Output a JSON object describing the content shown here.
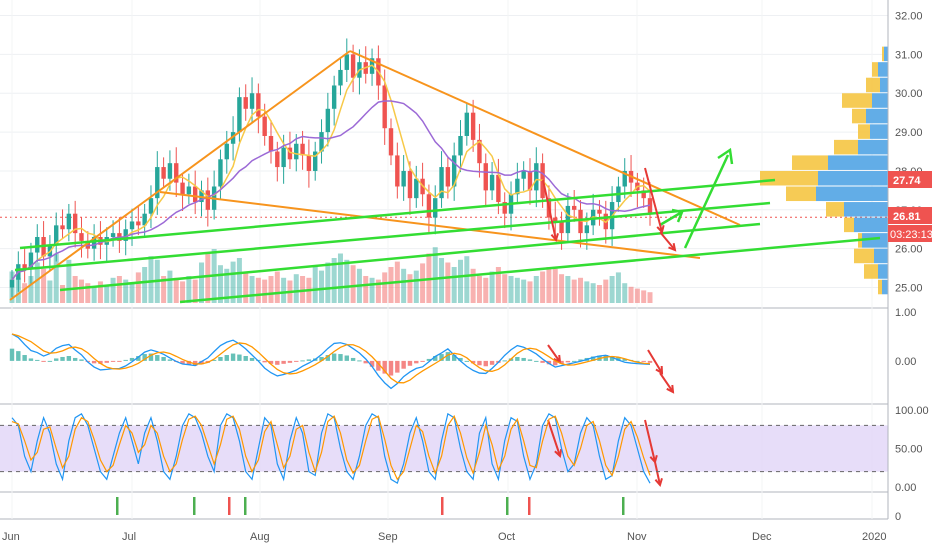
{
  "chart_data": [
    {
      "type": "candlestick",
      "panel": "price",
      "y_ticks": [
        "32.00",
        "31.00",
        "30.00",
        "29.00",
        "28.00",
        "27.00",
        "26.00",
        "25.00"
      ],
      "ylim": [
        24.55,
        32.4
      ],
      "last_price_label": "27.74",
      "current_price_label": "26.81",
      "countdown_label": "03:23:13",
      "colors": {
        "up": "#26a69a",
        "down": "#ef5350",
        "ma_fast": "#f7c948",
        "ma_slow": "#9c6ad6",
        "trend_orange": "#f7941d",
        "trend_green": "#33dd33",
        "arrow_red": "#e53935"
      },
      "closes": [
        25.2,
        25.6,
        25.5,
        25.9,
        26.3,
        25.8,
        26.1,
        26.6,
        26.5,
        26.9,
        26.4,
        26.2,
        26.0,
        26.3,
        26.1,
        26.3,
        26.4,
        26.2,
        26.5,
        26.7,
        26.6,
        26.9,
        27.3,
        28.1,
        27.8,
        28.2,
        27.7,
        27.4,
        27.6,
        27.2,
        27.5,
        27.0,
        27.6,
        28.3,
        28.7,
        29.0,
        29.9,
        29.6,
        30.0,
        29.4,
        28.9,
        28.5,
        28.1,
        28.6,
        28.3,
        28.7,
        28.4,
        28.0,
        28.5,
        29.0,
        29.6,
        30.2,
        30.6,
        31.0,
        30.4,
        30.8,
        30.5,
        30.9,
        30.2,
        29.1,
        28.4,
        27.6,
        28.0,
        27.3,
        27.8,
        27.4,
        26.8,
        27.3,
        28.1,
        27.6,
        28.4,
        28.9,
        29.5,
        28.8,
        28.2,
        27.5,
        27.9,
        27.2,
        26.9,
        27.4,
        27.8,
        28.0,
        27.5,
        28.2,
        27.3,
        26.8,
        26.7,
        26.4,
        27.1,
        27.0,
        26.4,
        26.6,
        27.0,
        26.9,
        26.5,
        27.2,
        27.6,
        28.0,
        27.7,
        27.5,
        27.3,
        26.9
      ],
      "volumes": [
        35,
        28,
        22,
        30,
        45,
        38,
        25,
        55,
        20,
        48,
        30,
        26,
        22,
        18,
        24,
        20,
        28,
        30,
        26,
        22,
        34,
        40,
        52,
        48,
        30,
        36,
        28,
        24,
        30,
        26,
        45,
        55,
        60,
        42,
        38,
        46,
        50,
        35,
        30,
        28,
        26,
        30,
        35,
        28,
        25,
        32,
        30,
        28,
        40,
        36,
        45,
        50,
        55,
        48,
        42,
        38,
        30,
        28,
        26,
        34,
        40,
        46,
        38,
        32,
        36,
        44,
        55,
        62,
        50,
        45,
        40,
        48,
        52,
        38,
        30,
        28,
        35,
        40,
        32,
        30,
        28,
        26,
        24,
        30,
        35,
        40,
        38,
        32,
        30,
        26,
        28,
        24,
        22,
        20,
        26,
        30,
        34,
        22,
        18,
        16,
        14,
        12
      ],
      "histogram": [
        0.25,
        0.2,
        0.12,
        0.05,
        0.02,
        -0.02,
        0.0,
        0.05,
        0.08,
        0.1,
        0.06,
        0.03,
        -0.02,
        -0.05,
        -0.06,
        -0.04,
        -0.02,
        -0.01,
        0.02,
        0.06,
        0.1,
        0.14,
        0.15,
        0.12,
        0.08,
        0.03,
        -0.02,
        -0.06,
        -0.08,
        -0.1,
        -0.07,
        -0.04,
        0.02,
        0.08,
        0.12,
        0.15,
        0.13,
        0.1,
        0.06,
        0.02,
        -0.03,
        -0.06,
        -0.08,
        -0.06,
        -0.04,
        -0.02,
        0.01,
        0.03,
        0.05,
        0.08,
        0.12,
        0.15,
        0.14,
        0.11,
        0.06,
        0.01,
        -0.05,
        -0.12,
        -0.2,
        -0.26,
        -0.3,
        -0.24,
        -0.16,
        -0.1,
        -0.05,
        -0.02,
        0.04,
        0.1,
        0.14,
        0.18,
        0.12,
        0.06,
        0.0,
        -0.05,
        -0.09,
        -0.11,
        -0.08,
        -0.04,
        0.01,
        0.05,
        0.08,
        0.06,
        0.03,
        0.0,
        -0.04,
        -0.07,
        -0.09,
        -0.06,
        -0.03,
        0.0,
        0.03,
        0.06,
        0.09,
        0.11,
        0.12,
        0.1,
        0.07,
        0.04,
        0.02,
        0.0,
        -0.02,
        -0.04
      ],
      "macd_ticks": [
        "1.00",
        "0.00"
      ],
      "macd_ylim": [
        -0.8,
        1.0
      ],
      "stoch_ticks": [
        "100.00",
        "50.00",
        "0.00"
      ],
      "stoch_ylim": [
        0,
        100
      ],
      "stoch_k": [
        90,
        80,
        40,
        20,
        60,
        90,
        70,
        30,
        10,
        60,
        90,
        95,
        80,
        50,
        20,
        10,
        40,
        70,
        90,
        60,
        30,
        70,
        90,
        60,
        20,
        10,
        40,
        80,
        95,
        90,
        70,
        40,
        20,
        80,
        95,
        90,
        60,
        20,
        10,
        50,
        90,
        80,
        30,
        10,
        60,
        90,
        70,
        20,
        15,
        70,
        95,
        90,
        50,
        20,
        10,
        40,
        80,
        95,
        90,
        40,
        10,
        5,
        30,
        70,
        90,
        60,
        20,
        10,
        60,
        95,
        90,
        50,
        20,
        10,
        70,
        90,
        30,
        10,
        60,
        90,
        85,
        40,
        10,
        30,
        80,
        95,
        90,
        50,
        20,
        30,
        70,
        90,
        80,
        40,
        10,
        15,
        60,
        90,
        80,
        50,
        20,
        5
      ],
      "stoch_d": [
        85,
        82,
        60,
        35,
        45,
        75,
        78,
        50,
        25,
        40,
        75,
        90,
        85,
        62,
        35,
        20,
        28,
        55,
        80,
        70,
        45,
        55,
        80,
        70,
        40,
        20,
        30,
        62,
        88,
        92,
        80,
        55,
        30,
        55,
        88,
        92,
        75,
        40,
        20,
        35,
        72,
        85,
        55,
        25,
        40,
        75,
        80,
        45,
        20,
        45,
        85,
        92,
        70,
        35,
        18,
        28,
        60,
        88,
        92,
        62,
        28,
        10,
        20,
        50,
        80,
        72,
        40,
        18,
        40,
        80,
        92,
        70,
        38,
        18,
        45,
        80,
        55,
        22,
        40,
        75,
        88,
        60,
        28,
        25,
        60,
        88,
        92,
        70,
        40,
        28,
        50,
        80,
        85,
        60,
        28,
        15,
        40,
        75,
        85,
        65,
        38,
        15
      ]
    }
  ],
  "x_labels": [
    "Jun",
    "Jul",
    "Aug",
    "Sep",
    "Oct",
    "Nov",
    "Dec",
    "2020"
  ],
  "bottom_panel_tick": "0"
}
